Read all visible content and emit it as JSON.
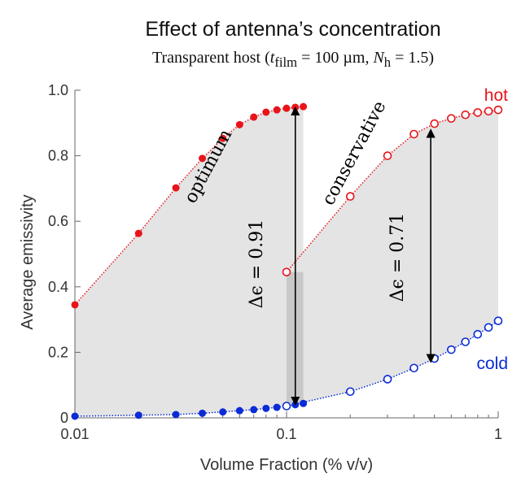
{
  "title": "Effect of antenna’s concentration",
  "subtitle": "Transparent host (t_film = 100 µm, N_h = 1.5)",
  "chart_data": {
    "type": "scatter",
    "xlabel": "Volume Fraction (% v/v)",
    "ylabel": "Average emissivity",
    "xscale": "log",
    "xlim": [
      0.01,
      1
    ],
    "ylim": [
      0,
      1
    ],
    "xticks": [
      {
        "v": 0.01,
        "label": "0.01"
      },
      {
        "v": 0.1,
        "label": "0.1"
      },
      {
        "v": 1,
        "label": "1"
      }
    ],
    "yticks": [
      {
        "v": 0,
        "label": "0"
      },
      {
        "v": 0.2,
        "label": "0.2"
      },
      {
        "v": 0.4,
        "label": "0.4"
      },
      {
        "v": 0.6,
        "label": "0.6"
      },
      {
        "v": 0.8,
        "label": "0.8"
      },
      {
        "v": 1,
        "label": "1.0"
      }
    ],
    "grid": false,
    "series": [
      {
        "name": "hot",
        "group": "optimum",
        "color": "#e8141a",
        "filled": true,
        "x": [
          0.01,
          0.02,
          0.03,
          0.04,
          0.05,
          0.06,
          0.07,
          0.08,
          0.09,
          0.1,
          0.11,
          0.12
        ],
        "y": [
          0.345,
          0.563,
          0.702,
          0.792,
          0.853,
          0.895,
          0.918,
          0.933,
          0.94,
          0.945,
          0.948,
          0.95
        ]
      },
      {
        "name": "cold",
        "group": "optimum",
        "color": "#0a2bd6",
        "filled": true,
        "x": [
          0.01,
          0.02,
          0.03,
          0.04,
          0.05,
          0.06,
          0.07,
          0.08,
          0.09,
          0.1,
          0.11,
          0.12
        ],
        "y": [
          0.005,
          0.008,
          0.01,
          0.014,
          0.018,
          0.022,
          0.025,
          0.029,
          0.032,
          0.036,
          0.04,
          0.044
        ]
      },
      {
        "name": "hot",
        "group": "conservative",
        "color": "#e8141a",
        "filled": false,
        "x": [
          0.1,
          0.2,
          0.3,
          0.4,
          0.5,
          0.6,
          0.7,
          0.8,
          0.9,
          1.0
        ],
        "y": [
          0.445,
          0.676,
          0.8,
          0.866,
          0.898,
          0.914,
          0.925,
          0.932,
          0.936,
          0.94
        ]
      },
      {
        "name": "cold",
        "group": "conservative",
        "color": "#0a2bd6",
        "filled": false,
        "x": [
          0.1,
          0.2,
          0.3,
          0.4,
          0.5,
          0.6,
          0.7,
          0.8,
          0.9,
          1.0
        ],
        "y": [
          0.036,
          0.08,
          0.118,
          0.152,
          0.181,
          0.208,
          0.232,
          0.255,
          0.276,
          0.296
        ]
      }
    ],
    "annotations": [
      {
        "text": "optimum",
        "x": 0.045,
        "y": 0.76,
        "rotate": -62
      },
      {
        "text": "conservative",
        "x": 0.22,
        "y": 0.8,
        "rotate": -62
      },
      {
        "text": "Δϵ = 0.91",
        "x": 0.0765,
        "y": 0.47,
        "rotate": -90
      },
      {
        "text": "Δϵ = 0.71",
        "x": 0.355,
        "y": 0.49,
        "rotate": -90
      }
    ],
    "arrows": [
      {
        "x": 0.11,
        "y_from": 0.04,
        "y_to": 0.948
      },
      {
        "x": 0.48,
        "y_from": 0.17,
        "y_to": 0.88
      }
    ],
    "legend": [
      {
        "text": "hot",
        "color": "#e8141a",
        "placement": "top-right"
      },
      {
        "text": "cold",
        "color": "#0a2bd6",
        "placement": "right"
      }
    ]
  }
}
